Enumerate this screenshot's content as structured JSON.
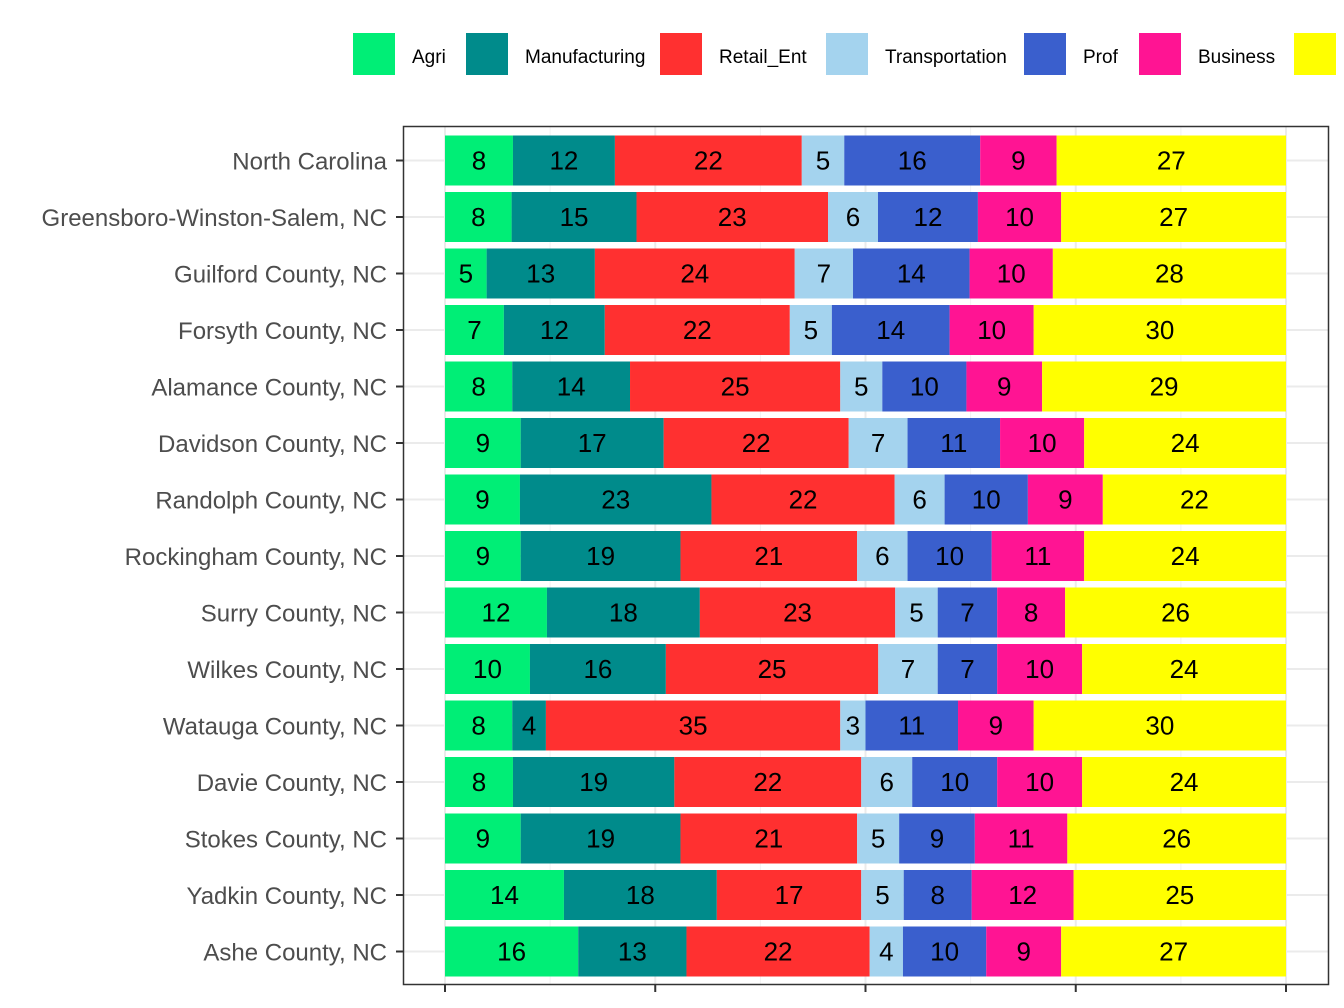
{
  "chart_data": {
    "type": "bar",
    "orientation": "horizontal",
    "stacked": true,
    "normalized_percent": true,
    "title": "",
    "xlabel": "",
    "ylabel": "",
    "grid": true,
    "legend_position": "top",
    "categories": [
      "North Carolina",
      "Greensboro-Winston-Salem, NC",
      "Guilford County, NC",
      "Forsyth County, NC",
      "Alamance County, NC",
      "Davidson County, NC",
      "Randolph County, NC",
      "Rockingham County, NC",
      "Surry County, NC",
      "Wilkes County, NC",
      "Watauga County, NC",
      "Davie County, NC",
      "Stokes County, NC",
      "Yadkin County, NC",
      "Ashe County, NC"
    ],
    "series": [
      {
        "name": "Agri",
        "color": "#00EE76",
        "values": [
          8,
          8,
          5,
          7,
          8,
          9,
          9,
          9,
          12,
          10,
          8,
          8,
          9,
          14,
          16
        ]
      },
      {
        "name": "Manufacturing",
        "color": "#008B8B",
        "values": [
          12,
          15,
          13,
          12,
          14,
          17,
          23,
          19,
          18,
          16,
          4,
          19,
          19,
          18,
          13
        ]
      },
      {
        "name": "Retail_Ent",
        "color": "#FF3030",
        "values": [
          22,
          23,
          24,
          22,
          25,
          22,
          22,
          21,
          23,
          25,
          35,
          22,
          21,
          17,
          22
        ]
      },
      {
        "name": "Transportation",
        "color": "#A4D3EE",
        "values": [
          5,
          6,
          7,
          5,
          5,
          7,
          6,
          6,
          5,
          7,
          3,
          6,
          5,
          5,
          4
        ]
      },
      {
        "name": "Prof",
        "color": "#3A5FCD",
        "values": [
          16,
          12,
          14,
          14,
          10,
          11,
          10,
          10,
          7,
          7,
          11,
          10,
          9,
          8,
          10
        ]
      },
      {
        "name": "Business",
        "color": "#FF1493",
        "values": [
          9,
          10,
          10,
          10,
          9,
          10,
          9,
          11,
          8,
          10,
          9,
          10,
          11,
          12,
          9
        ]
      },
      {
        "name": "",
        "color": "#FFFF00",
        "values": [
          27,
          27,
          28,
          30,
          29,
          24,
          22,
          24,
          26,
          24,
          30,
          24,
          26,
          25,
          27
        ]
      }
    ]
  }
}
